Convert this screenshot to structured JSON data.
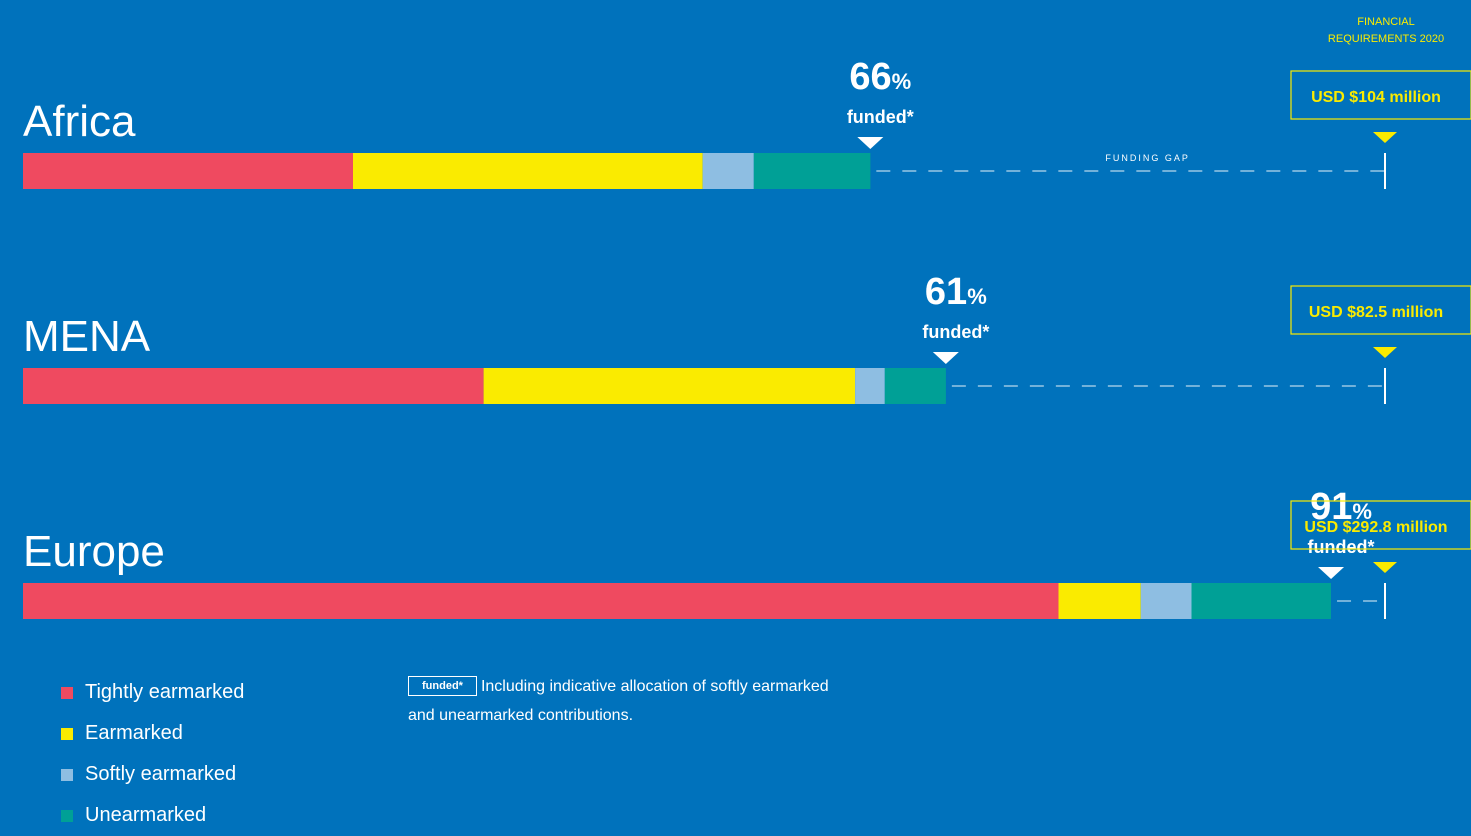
{
  "header": {
    "requirements_label_line1": "FINANCIAL",
    "requirements_label_line2": "REQUIREMENTS 2020"
  },
  "funding_gap_label": "FUNDING GAP",
  "colors": {
    "background": "#0072BC",
    "tightly_earmarked": "#EF4A60",
    "earmarked": "#FAEB00",
    "softly_earmarked": "#8EBEE2",
    "unearmarked": "#00A096",
    "accent": "#FAEB00"
  },
  "chart_data": {
    "type": "bar",
    "orientation": "horizontal",
    "stacked": true,
    "categories": [
      "Africa",
      "MENA",
      "Europe"
    ],
    "series": [
      {
        "name": "Tightly earmarked",
        "values": [
          25.2,
          27.9,
          222.6
        ]
      },
      {
        "name": "Earmarked",
        "values": [
          26.7,
          22.5,
          17.7
        ]
      },
      {
        "name": "Softly earmarked",
        "values": [
          3.9,
          1.8,
          10.9
        ]
      },
      {
        "name": "Unearmarked",
        "values": [
          8.9,
          3.7,
          30.0
        ]
      }
    ],
    "funded_percent": [
      66,
      61,
      91
    ],
    "funded_suffix": "%",
    "funded_text": "funded*",
    "requirements": [
      104,
      82.5,
      292.8
    ],
    "requirement_labels": [
      "USD $104 million",
      "USD $82.5 million",
      "USD $292.8 million"
    ]
  },
  "legend": [
    {
      "label": "Tightly earmarked",
      "color": "#EF4A60"
    },
    {
      "label": "Earmarked",
      "color": "#FAEB00"
    },
    {
      "label": "Softly earmarked",
      "color": "#8EBEE2"
    },
    {
      "label": "Unearmarked",
      "color": "#00A096"
    }
  ],
  "note": {
    "tag": "funded*",
    "text": "Including indicative allocation of softly earmarked and unearmarked contributions."
  }
}
